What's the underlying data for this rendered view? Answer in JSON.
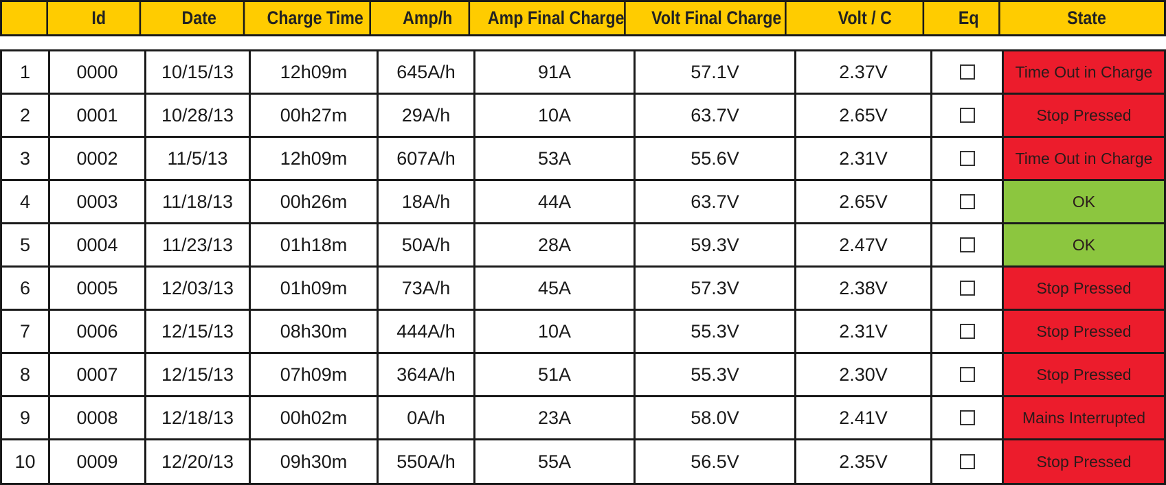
{
  "colors": {
    "header_bg": "#ffcc00",
    "state_red": "#ec1c2c",
    "state_green": "#8cc63f",
    "border": "#1a1a1a"
  },
  "columns": [
    "",
    "Id",
    "Date",
    "Charge Time",
    "Amp/h",
    "Amp Final Charge",
    "Volt Final Charge",
    "Volt / C",
    "Eq",
    "State"
  ],
  "rows": [
    {
      "n": "1",
      "id": "0000",
      "date": "10/15/13",
      "charge_time": "12h09m",
      "amph": "645A/h",
      "amp_final": "91A",
      "volt_final": "57.1V",
      "volt_c": "2.37V",
      "eq": false,
      "state": "Time Out in Charge",
      "state_color": "red"
    },
    {
      "n": "2",
      "id": "0001",
      "date": "10/28/13",
      "charge_time": "00h27m",
      "amph": "29A/h",
      "amp_final": "10A",
      "volt_final": "63.7V",
      "volt_c": "2.65V",
      "eq": false,
      "state": "Stop Pressed",
      "state_color": "red"
    },
    {
      "n": "3",
      "id": "0002",
      "date": "11/5/13",
      "charge_time": "12h09m",
      "amph": "607A/h",
      "amp_final": "53A",
      "volt_final": "55.6V",
      "volt_c": "2.31V",
      "eq": false,
      "state": "Time Out in Charge",
      "state_color": "red"
    },
    {
      "n": "4",
      "id": "0003",
      "date": "11/18/13",
      "charge_time": "00h26m",
      "amph": "18A/h",
      "amp_final": "44A",
      "volt_final": "63.7V",
      "volt_c": "2.65V",
      "eq": false,
      "state": "OK",
      "state_color": "green"
    },
    {
      "n": "5",
      "id": "0004",
      "date": "11/23/13",
      "charge_time": "01h18m",
      "amph": "50A/h",
      "amp_final": "28A",
      "volt_final": "59.3V",
      "volt_c": "2.47V",
      "eq": false,
      "state": "OK",
      "state_color": "green"
    },
    {
      "n": "6",
      "id": "0005",
      "date": "12/03/13",
      "charge_time": "01h09m",
      "amph": "73A/h",
      "amp_final": "45A",
      "volt_final": "57.3V",
      "volt_c": "2.38V",
      "eq": false,
      "state": "Stop Pressed",
      "state_color": "red"
    },
    {
      "n": "7",
      "id": "0006",
      "date": "12/15/13",
      "charge_time": "08h30m",
      "amph": "444A/h",
      "amp_final": "10A",
      "volt_final": "55.3V",
      "volt_c": "2.31V",
      "eq": false,
      "state": "Stop Pressed",
      "state_color": "red"
    },
    {
      "n": "8",
      "id": "0007",
      "date": "12/15/13",
      "charge_time": "07h09m",
      "amph": "364A/h",
      "amp_final": "51A",
      "volt_final": "55.3V",
      "volt_c": "2.30V",
      "eq": false,
      "state": "Stop Pressed",
      "state_color": "red"
    },
    {
      "n": "9",
      "id": "0008",
      "date": "12/18/13",
      "charge_time": "00h02m",
      "amph": "0A/h",
      "amp_final": "23A",
      "volt_final": "58.0V",
      "volt_c": "2.41V",
      "eq": false,
      "state": "Mains Interrupted",
      "state_color": "red"
    },
    {
      "n": "10",
      "id": "0009",
      "date": "12/20/13",
      "charge_time": "09h30m",
      "amph": "550A/h",
      "amp_final": "55A",
      "volt_final": "56.5V",
      "volt_c": "2.35V",
      "eq": false,
      "state": "Stop Pressed",
      "state_color": "red"
    }
  ]
}
